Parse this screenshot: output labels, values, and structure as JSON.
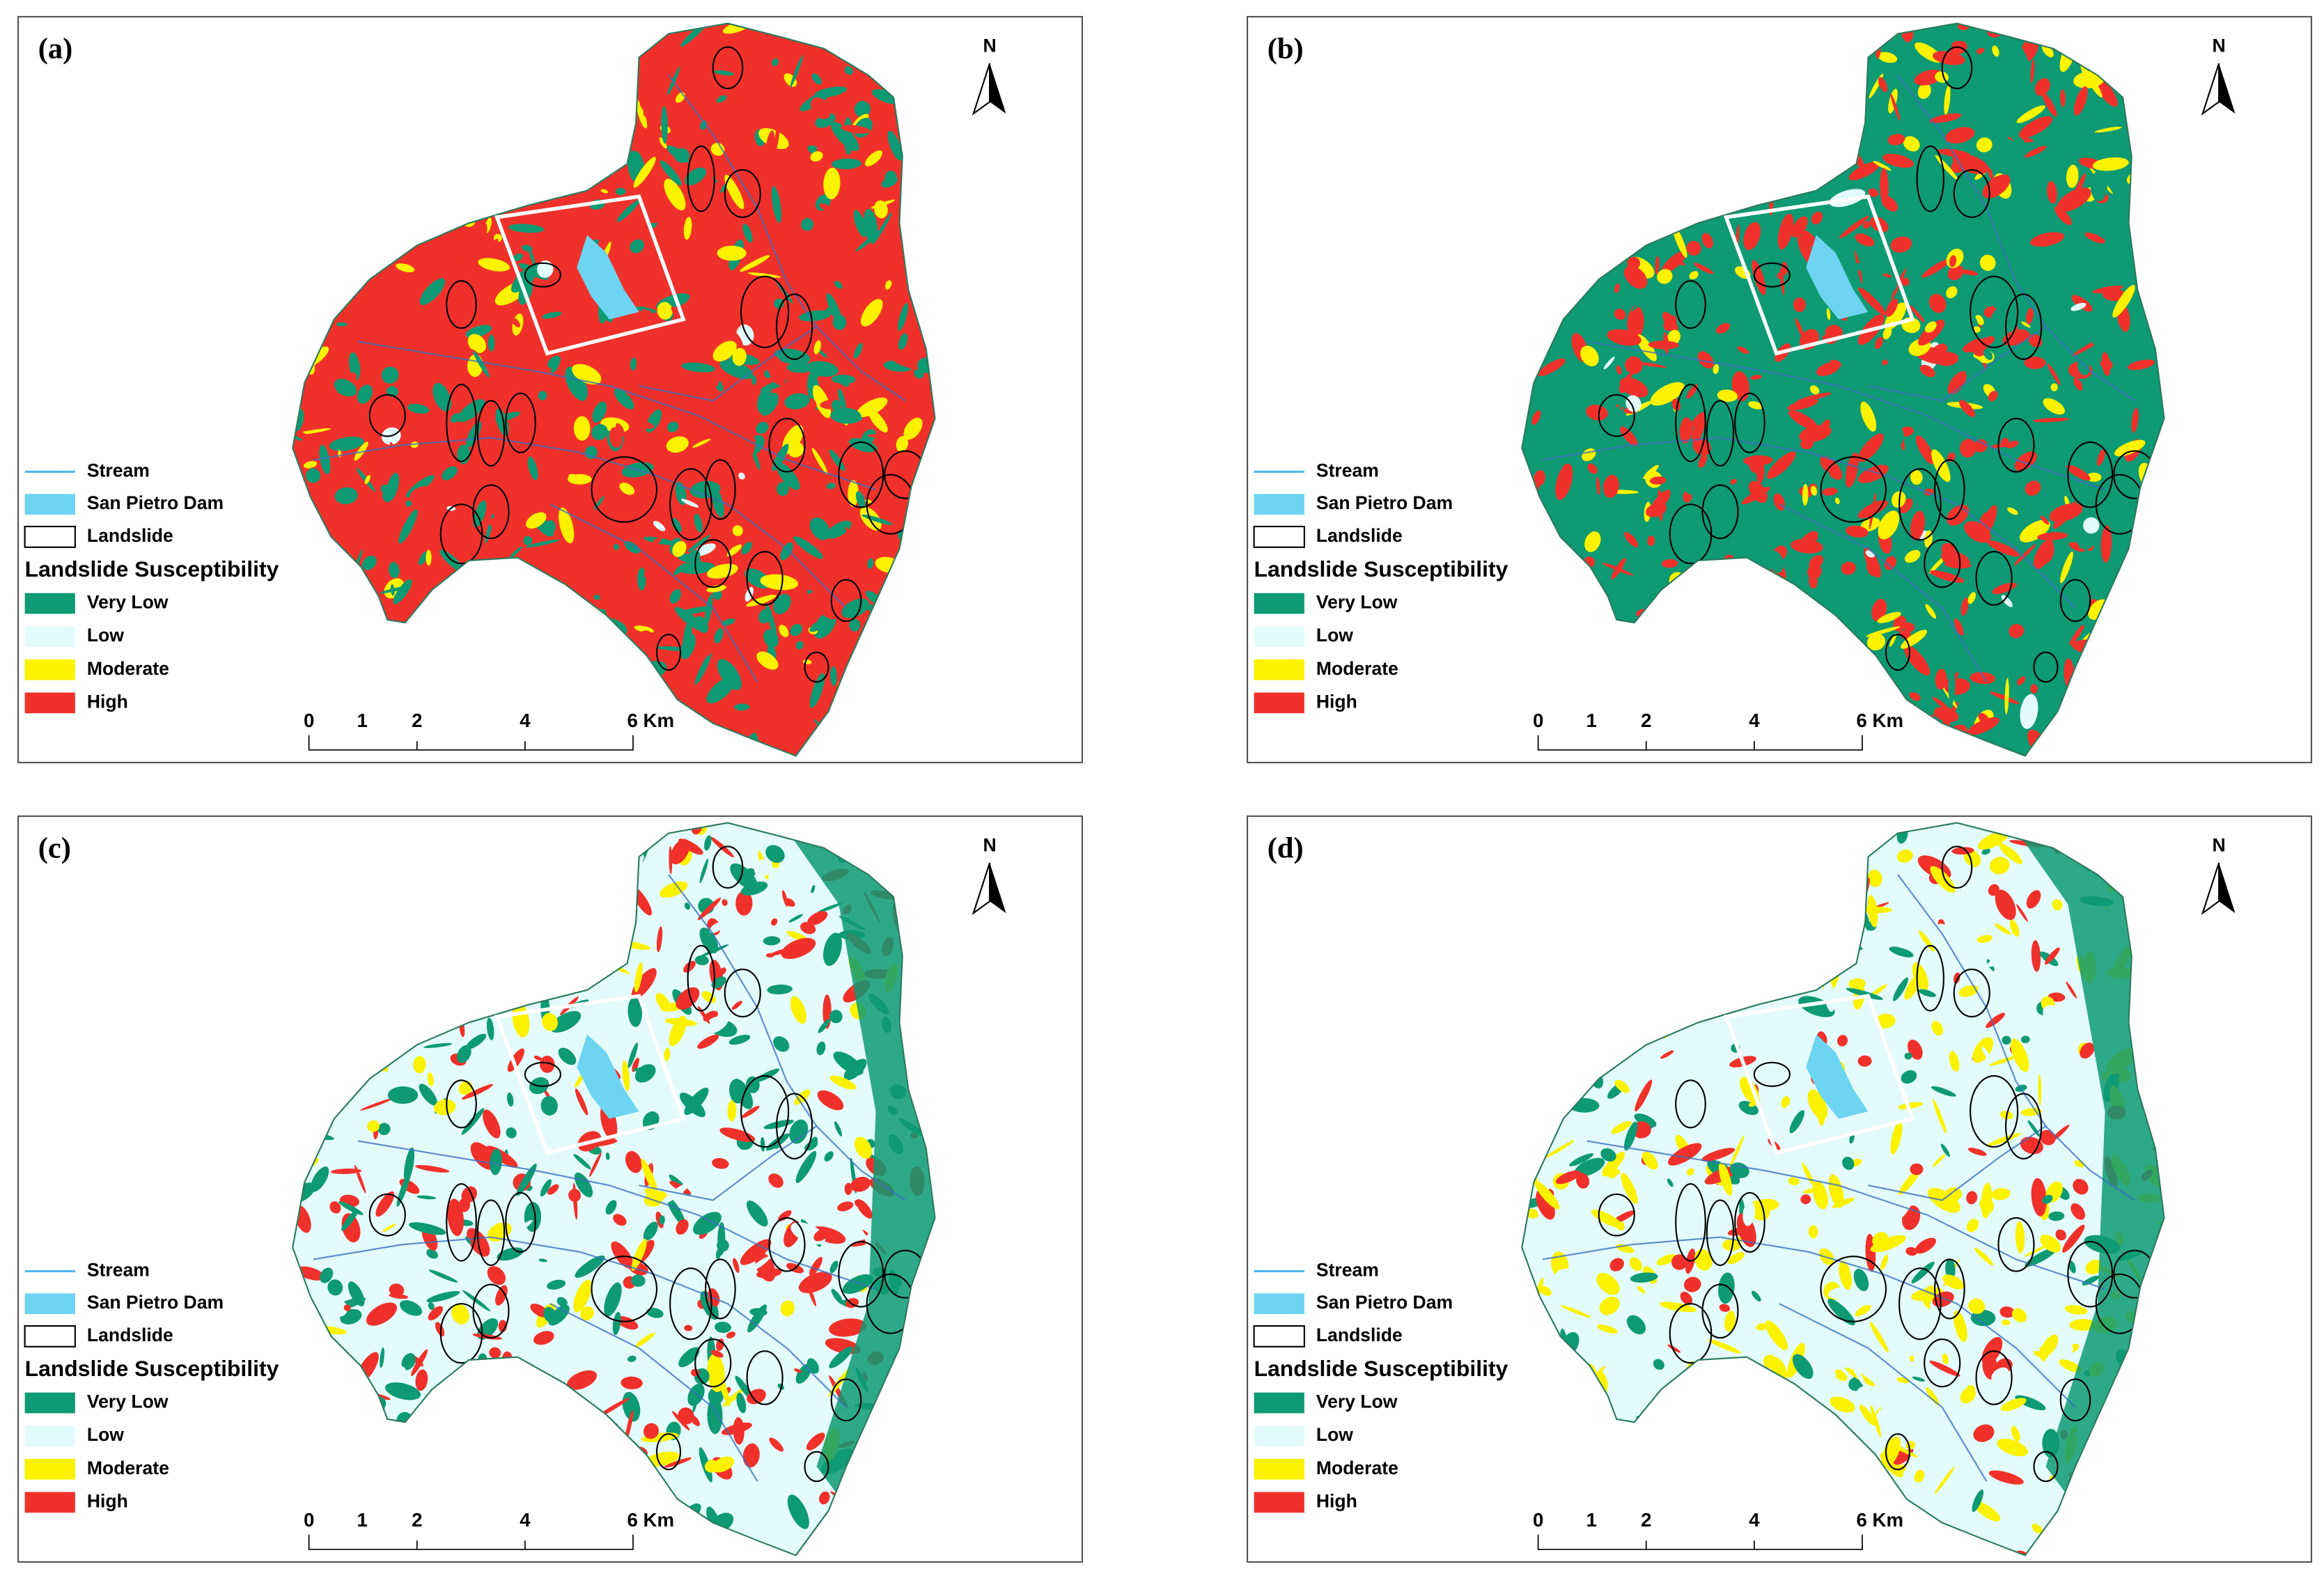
{
  "panels": [
    {
      "label": "(a)"
    },
    {
      "label": "(b)"
    },
    {
      "label": "(c)"
    },
    {
      "label": "(d)"
    }
  ],
  "north": "N",
  "legend": {
    "items": [
      {
        "label": "Stream",
        "color": "#4fb8ea"
      },
      {
        "label": "San Pietro Dam",
        "color": "#6dd5f2"
      },
      {
        "label": "Landslide",
        "color": "#ffffff"
      }
    ],
    "title": "Landslide Susceptibility",
    "classes": [
      {
        "label": "Very Low",
        "color": "#0e9a73"
      },
      {
        "label": "Low",
        "color": "#e3fbfb"
      },
      {
        "label": "Moderate",
        "color": "#fbf200"
      },
      {
        "label": "High",
        "color": "#f0312b"
      }
    ]
  },
  "scale_bar": [
    "0",
    "1",
    "2",
    "4",
    "6 Km"
  ]
}
